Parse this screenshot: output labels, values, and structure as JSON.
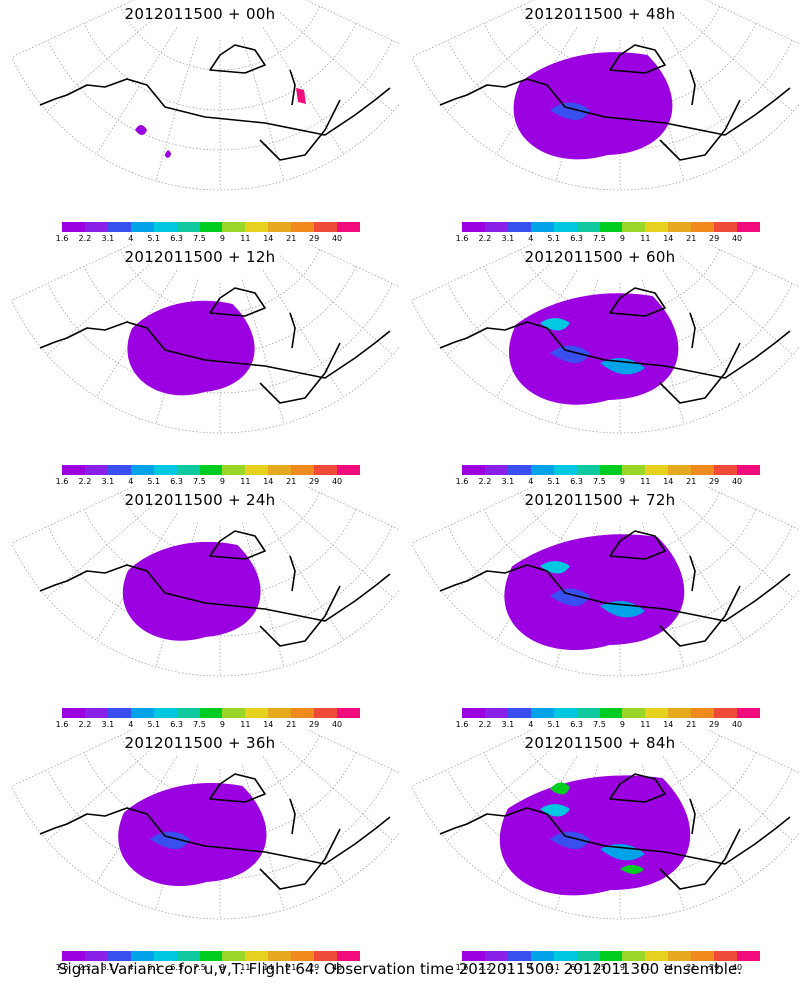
{
  "panels": [
    {
      "title": "2012011500 + 00h",
      "level": 0
    },
    {
      "title": "2012011500 + 48h",
      "level": 4
    },
    {
      "title": "2012011500 + 12h",
      "level": 1
    },
    {
      "title": "2012011500 + 60h",
      "level": 5
    },
    {
      "title": "2012011500 + 24h",
      "level": 2
    },
    {
      "title": "2012011500 + 72h",
      "level": 6
    },
    {
      "title": "2012011500 + 36h",
      "level": 3
    },
    {
      "title": "2012011500 + 84h",
      "level": 7
    }
  ],
  "colorbar": {
    "labels": [
      "1.6",
      "2.2",
      "3.1",
      "4",
      "5.1",
      "6.3",
      "7.5",
      "9",
      "11",
      "14",
      "21",
      "29",
      "40"
    ],
    "colors": [
      "#9b00e0",
      "#8a1fe8",
      "#3a4ff0",
      "#00a2e8",
      "#00c8e0",
      "#10c8a0",
      "#00cc22",
      "#9ad62a",
      "#e6d21e",
      "#e6a81e",
      "#f08a1e",
      "#f04a38",
      "#f00c7c"
    ]
  },
  "footer": "Signal Variance for u,v,T. Flight 64. Observation time 2012011500. 2012011300 ensemble."
}
